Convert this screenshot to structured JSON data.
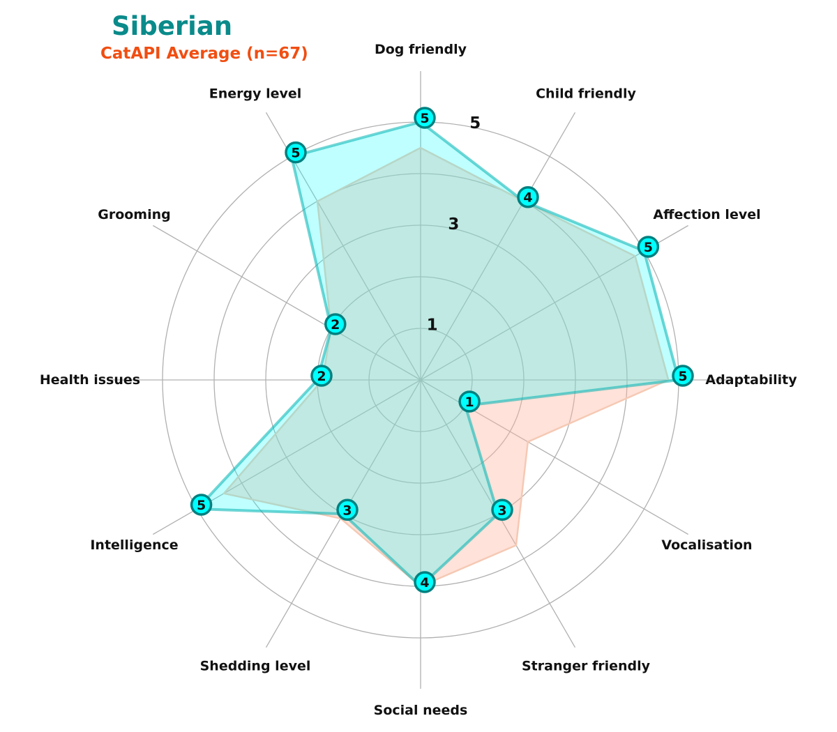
{
  "header": {
    "title": "Siberian",
    "subtitle": "CatAPI Average (n=67)"
  },
  "colors": {
    "title": "#0a8a8a",
    "subtitle": "#f04e12",
    "breed_fill": "#00ffff",
    "breed_stroke": "#00b3b3",
    "breed_marker_edge": "#008080",
    "average_fill": "#ffb49a",
    "average_stroke": "#f5c9b4",
    "grid": "#b0b0b0"
  },
  "chart_data": {
    "type": "radar",
    "categories": [
      "Adaptability",
      "Affection level",
      "Child friendly",
      "Dog friendly",
      "Energy level",
      "Grooming",
      "Health issues",
      "Intelligence",
      "Shedding level",
      "Social needs",
      "Stranger friendly",
      "Vocalisation"
    ],
    "radial_range": [
      0,
      5
    ],
    "radial_tick_labels": [
      "1",
      "3",
      "5"
    ],
    "grid": true,
    "series": [
      {
        "name": "Siberian",
        "values": [
          5,
          5,
          4,
          5,
          5,
          2,
          2,
          5,
          3,
          4,
          3,
          1
        ],
        "labels": [
          "5",
          "5",
          "4",
          "5",
          "5",
          "2",
          "2",
          "5",
          "3",
          "4",
          "3",
          "1"
        ]
      },
      {
        "name": "CatAPI Average (n=67)",
        "values": [
          4.8,
          4.8,
          4.0,
          4.5,
          4.0,
          2.0,
          1.9,
          4.4,
          3.1,
          4.0,
          3.7,
          2.4
        ]
      }
    ]
  }
}
